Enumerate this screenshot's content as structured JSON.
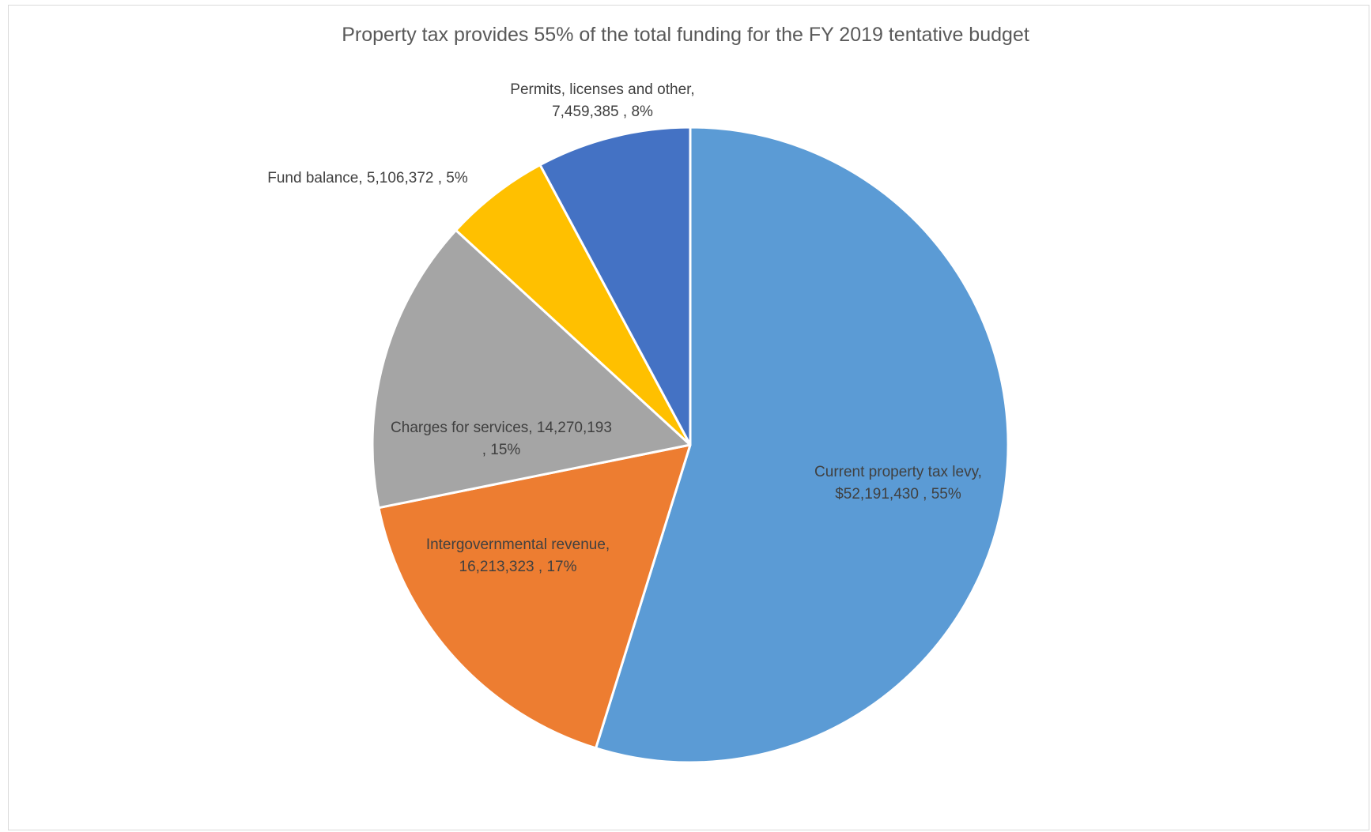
{
  "chart_data": {
    "type": "pie",
    "title": "Property tax provides 55% of the total funding for the FY 2019 tentative budget",
    "start_angle_deg": 0,
    "direction": "clockwise",
    "slices": [
      {
        "name": "Current property tax levy",
        "value": 52191430,
        "value_label": "$52,191,430",
        "percent_label": "55%",
        "color": "#5b9bd5",
        "label_color": "#404040",
        "label_lines": [
          "Current property tax levy,",
          "$52,191,430 , 55%"
        ]
      },
      {
        "name": "Intergovernmental revenue",
        "value": 16213323,
        "value_label": "16,213,323",
        "percent_label": "17%",
        "color": "#ed7d31",
        "label_color": "#404040",
        "label_lines": [
          "Intergovernmental revenue,",
          "16,213,323 , 17%"
        ]
      },
      {
        "name": "Charges for services",
        "value": 14270193,
        "value_label": "14,270,193",
        "percent_label": "15%",
        "color": "#a5a5a5",
        "label_color": "#404040",
        "label_lines": [
          "Charges for services,  14,270,193",
          ", 15%"
        ]
      },
      {
        "name": "Fund balance",
        "value": 5106372,
        "value_label": "5,106,372",
        "percent_label": "5%",
        "color": "#ffc000",
        "label_color": "#404040",
        "label_lines": [
          "Fund balance,  5,106,372 , 5%"
        ]
      },
      {
        "name": "Permits, licenses and other",
        "value": 7459385,
        "value_label": "7,459,385",
        "percent_label": "8%",
        "color": "#4472c4",
        "label_color": "#404040",
        "label_lines": [
          "Permits, licenses and other,",
          "7,459,385 , 8%"
        ]
      }
    ],
    "legend": "none"
  }
}
